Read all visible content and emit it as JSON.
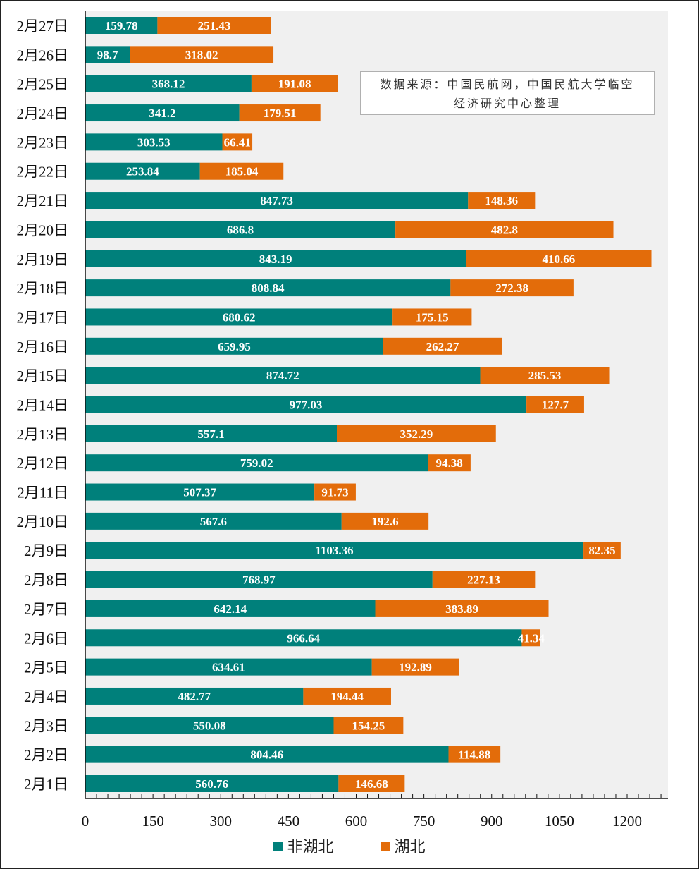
{
  "chart_data": {
    "type": "bar",
    "orientation": "horizontal",
    "stacked": true,
    "title": "",
    "xlabel": "",
    "ylabel": "",
    "xlim": [
      0,
      1290
    ],
    "xticks": [
      0,
      150,
      300,
      450,
      600,
      750,
      900,
      1050,
      1200
    ],
    "grid": false,
    "legend_position": "bottom",
    "categories": [
      "2月27日",
      "2月26日",
      "2月25日",
      "2月24日",
      "2月23日",
      "2月22日",
      "2月21日",
      "2月20日",
      "2月19日",
      "2月18日",
      "2月17日",
      "2月16日",
      "2月15日",
      "2月14日",
      "2月13日",
      "2月12日",
      "2月11日",
      "2月10日",
      "2月9日",
      "2月8日",
      "2月7日",
      "2月6日",
      "2月5日",
      "2月4日",
      "2月3日",
      "2月2日",
      "2月1日"
    ],
    "series": [
      {
        "name": "非湖北",
        "color": "#00807b",
        "values": [
          159.78,
          98.7,
          368.12,
          341.2,
          303.53,
          253.84,
          847.73,
          686.8,
          843.19,
          808.84,
          680.62,
          659.95,
          874.72,
          977.03,
          557.1,
          759.02,
          507.37,
          567.6,
          1103.36,
          768.97,
          642.14,
          966.64,
          634.61,
          482.77,
          550.08,
          804.46,
          560.76
        ]
      },
      {
        "name": "湖北",
        "color": "#e36c0a",
        "values": [
          251.43,
          318.02,
          191.08,
          179.51,
          66.41,
          185.04,
          148.36,
          482.8,
          410.66,
          272.38,
          175.15,
          262.27,
          285.53,
          127.7,
          352.29,
          94.38,
          91.73,
          192.6,
          82.35,
          227.13,
          383.89,
          41.34,
          192.89,
          194.44,
          154.25,
          114.88,
          146.68
        ]
      }
    ],
    "annotation": "数据来源：中国民航网，中国民航大学临空经济研究中心整理",
    "colors": {
      "plot_background": "#f0f0f0",
      "axis": "#111111"
    }
  },
  "source_note": {
    "line1": "数据来源：中国民航网，中国民航大学临空",
    "line2": "经济研究中心整理"
  },
  "legend": {
    "items": [
      {
        "label": "非湖北",
        "color": "#00807b"
      },
      {
        "label": "湖北",
        "color": "#e36c0a"
      }
    ]
  }
}
